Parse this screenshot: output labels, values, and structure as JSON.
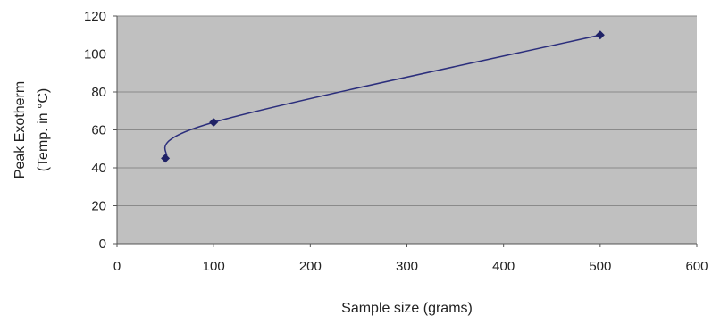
{
  "chart_data": {
    "type": "line",
    "title": "",
    "xlabel": "Sample size (grams)",
    "ylabel_lines": [
      "Peak Exotherm",
      "(Temp. in °C)"
    ],
    "x": [
      50,
      100,
      500
    ],
    "y": [
      45,
      64,
      110
    ],
    "series": [
      {
        "name": "",
        "x": [
          50,
          100,
          500
        ],
        "y": [
          45,
          64,
          110
        ]
      }
    ],
    "xlim": [
      0,
      600
    ],
    "ylim": [
      0,
      120
    ],
    "xticks": [
      0,
      100,
      200,
      300,
      400,
      500,
      600
    ],
    "yticks": [
      0,
      20,
      40,
      60,
      80,
      100,
      120
    ],
    "xtick_labels": [
      "0",
      "100",
      "200",
      "300",
      "400",
      "500",
      "600"
    ],
    "ytick_labels": [
      "0",
      "20",
      "40",
      "60",
      "80",
      "100",
      "120"
    ],
    "grid": "horizontal",
    "legend": "none",
    "smoothed": true,
    "marker": "diamond"
  },
  "colors": {
    "plot_background": "#c0c0c0",
    "gridline": "#8a8a8a",
    "series_line": "#2b2e7c",
    "marker": "#1f2266",
    "axis": "#555555"
  }
}
